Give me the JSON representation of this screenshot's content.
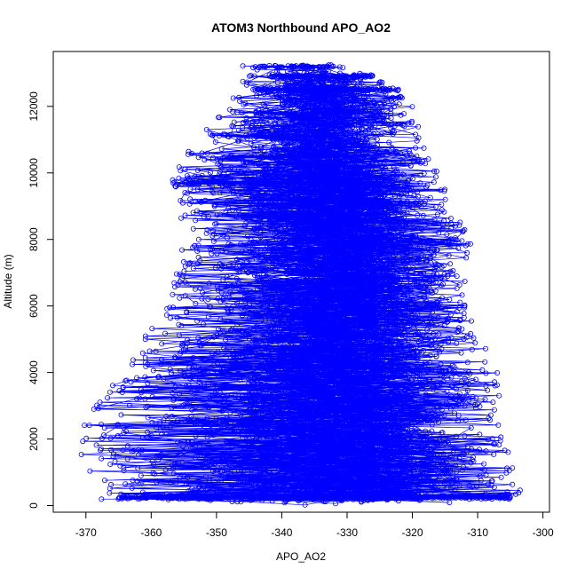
{
  "chart_data": {
    "type": "scatter",
    "title": "ATOM3 Northbound APO_AO2",
    "xlabel": "APO_AO2",
    "ylabel": "Altitude (m)",
    "xlim": [
      -375,
      -299
    ],
    "ylim": [
      -200,
      13650
    ],
    "x_ticks": [
      -370,
      -360,
      -350,
      -340,
      -330,
      -320,
      -310,
      -300
    ],
    "y_ticks": [
      0,
      2000,
      4000,
      6000,
      8000,
      10000,
      12000
    ],
    "series_color": "#0000ff",
    "marker": "open-circle",
    "connected_lines": true,
    "grid": false,
    "legend": "none",
    "envelope": [
      {
        "altitude": 200,
        "x_min": -368,
        "x_max": -303,
        "x_center": -330,
        "x_spread": 9
      },
      {
        "altitude": 2000,
        "x_min": -372,
        "x_max": -306,
        "x_center": -330,
        "x_spread": 9
      },
      {
        "altitude": 4000,
        "x_min": -365,
        "x_max": -307,
        "x_center": -330,
        "x_spread": 7
      },
      {
        "altitude": 6000,
        "x_min": -358,
        "x_max": -312,
        "x_center": -330,
        "x_spread": 6
      },
      {
        "altitude": 8000,
        "x_min": -355,
        "x_max": -311,
        "x_center": -330,
        "x_spread": 6
      },
      {
        "altitude": 10000,
        "x_min": -357,
        "x_max": -316,
        "x_center": -332,
        "x_spread": 6
      },
      {
        "altitude": 11000,
        "x_min": -354,
        "x_max": -318,
        "x_center": -334,
        "x_spread": 5
      },
      {
        "altitude": 12000,
        "x_min": -348,
        "x_max": -320,
        "x_center": -333,
        "x_spread": 5
      },
      {
        "altitude": 13150,
        "x_min": -346,
        "x_max": -327,
        "x_center": -336,
        "x_spread": 3
      }
    ],
    "flight_levels": [
      {
        "altitude": 250,
        "x_min": -365,
        "x_max": -305
      },
      {
        "altitude": 9700,
        "x_min": -357,
        "x_max": -325
      },
      {
        "altitude": 10500,
        "x_min": -350,
        "x_max": -322
      },
      {
        "altitude": 11100,
        "x_min": -354,
        "x_max": -326
      },
      {
        "altitude": 11800,
        "x_min": -349,
        "x_max": -323
      },
      {
        "altitude": 12500,
        "x_min": -345,
        "x_max": -322
      },
      {
        "altitude": 12900,
        "x_min": -342,
        "x_max": -326
      },
      {
        "altitude": 13200,
        "x_min": -346,
        "x_max": -330
      }
    ]
  }
}
